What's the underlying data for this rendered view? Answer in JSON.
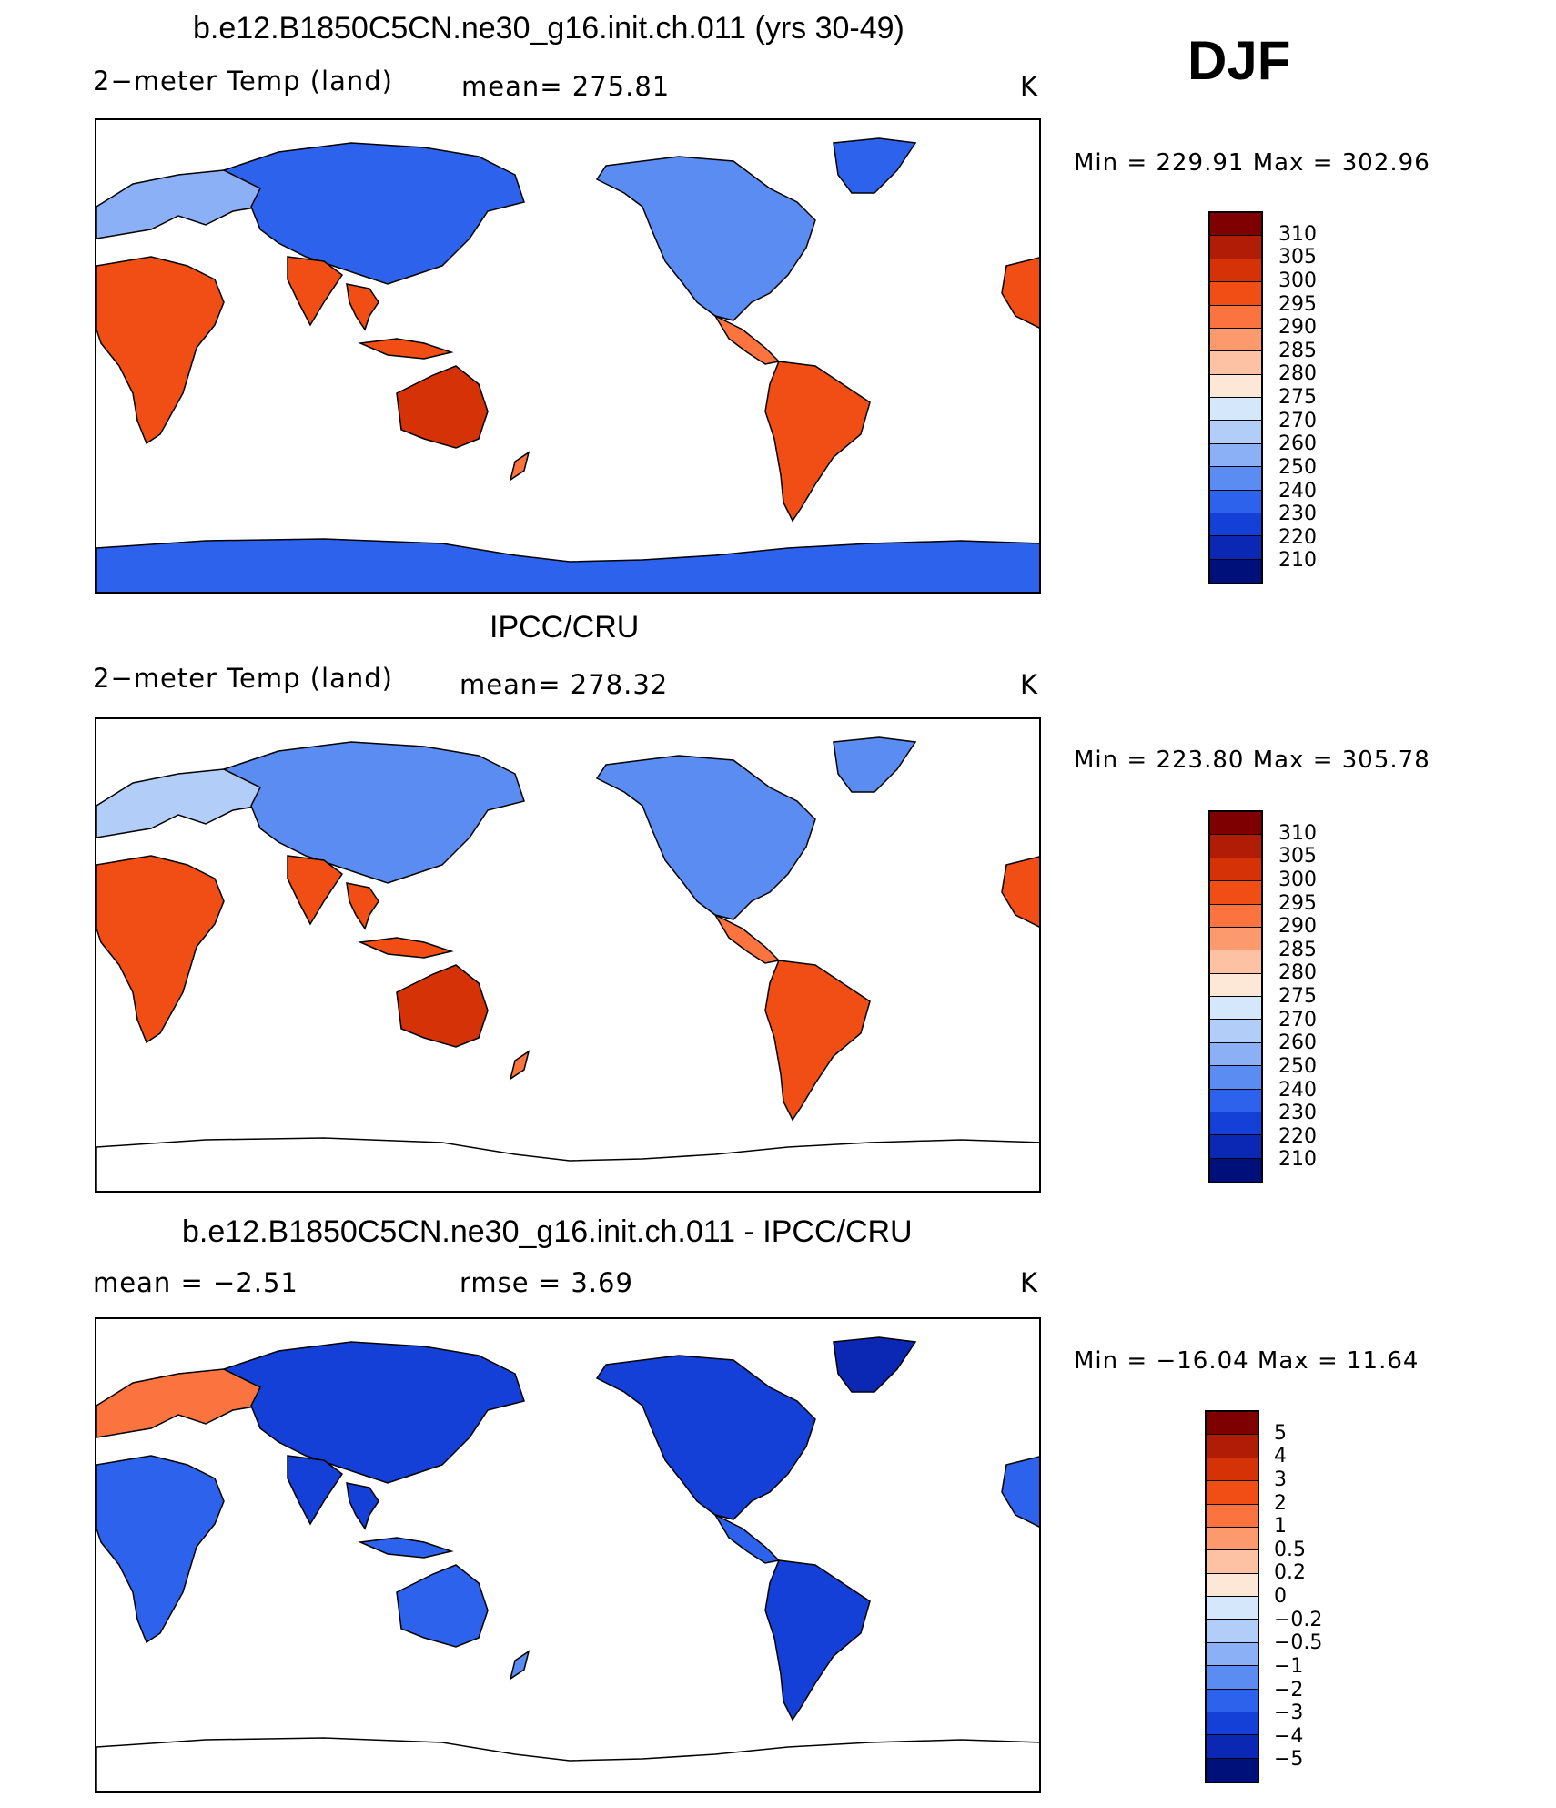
{
  "season": "DJF",
  "panels": [
    {
      "title": "b.e12.B1850C5CN.ne30_g16.init.ch.011 (yrs 30-49)",
      "left_label": "2−meter Temp (land)",
      "mid_label": "mean=  275.81",
      "unit": "K",
      "stats": "Min  =  229.91  Max  =  302.96",
      "field": "model"
    },
    {
      "title": "IPCC/CRU",
      "left_label": "2−meter Temp (land)",
      "mid_label": "mean=  278.32",
      "unit": "K",
      "stats": "Min  =  223.80  Max  =  305.78",
      "field": "obs"
    },
    {
      "title": "b.e12.B1850C5CN.ne30_g16.init.ch.011 - IPCC/CRU",
      "left_label": "mean  =      −2.51",
      "mid_label": "rmse  =      3.69",
      "unit": "K",
      "stats": "Min  =  −16.04  Max  =     11.64",
      "field": "diff"
    }
  ],
  "colorbars": {
    "temperature": {
      "labels": [
        "310",
        "305",
        "300",
        "295",
        "290",
        "285",
        "280",
        "275",
        "270",
        "260",
        "250",
        "240",
        "230",
        "220",
        "210"
      ],
      "colors": [
        "#7f0000",
        "#b01c05",
        "#d63208",
        "#f04e14",
        "#fb7440",
        "#fc9a6e",
        "#fdc2a4",
        "#fde8d8",
        "#d5e8fb",
        "#b2cdf8",
        "#8cb0f6",
        "#5b8cf2",
        "#2d63ec",
        "#1440d8",
        "#0a28b4",
        "#00107a"
      ]
    },
    "difference": {
      "labels": [
        "5",
        "4",
        "3",
        "2",
        "1",
        "0.5",
        "0.2",
        "0",
        "−0.2",
        "−0.5",
        "−1",
        "−2",
        "−3",
        "−4",
        "−5"
      ],
      "colors": [
        "#7f0000",
        "#b01c05",
        "#d63208",
        "#f04e14",
        "#fb7440",
        "#fc9a6e",
        "#fdc2a4",
        "#fde8d8",
        "#d5e8fb",
        "#b2cdf8",
        "#8cb0f6",
        "#5b8cf2",
        "#2d63ec",
        "#1440d8",
        "#0a28b4",
        "#00107a"
      ]
    }
  }
}
